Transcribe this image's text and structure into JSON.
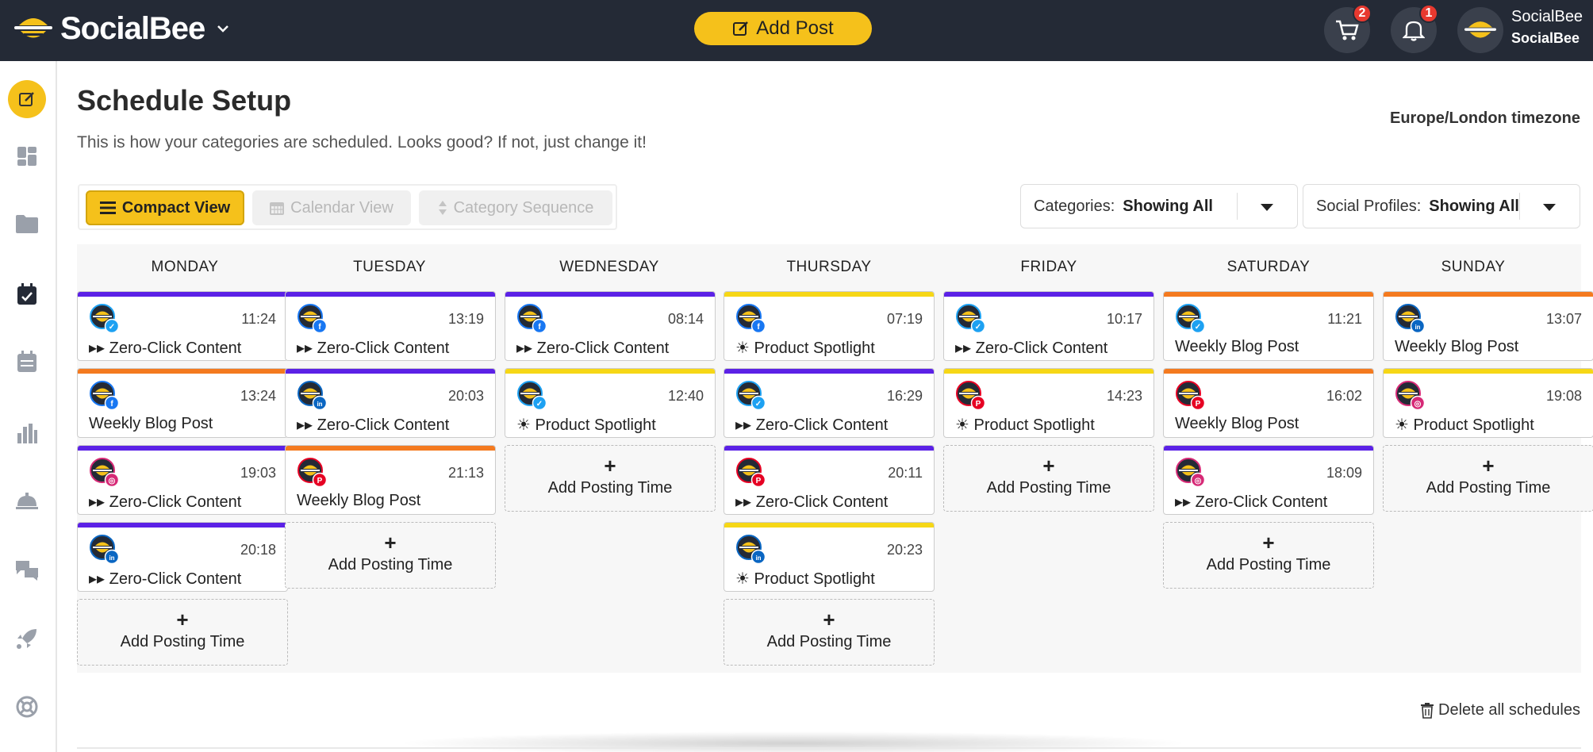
{
  "topbar": {
    "brand": "SocialBee",
    "add_post_label": "Add Post",
    "cart_badge": "2",
    "notifications_badge": "1",
    "user_name": "SocialBee",
    "user_org": "SocialBee"
  },
  "sidebar": {
    "items": [
      "edit-icon",
      "dashboard-icon",
      "folder-icon",
      "schedule-icon",
      "calendar-icon",
      "analytics-icon",
      "concierge-icon",
      "chat-icon",
      "rocket-icon",
      "help-icon"
    ]
  },
  "page": {
    "title": "Schedule Setup",
    "subtitle": "This is how your categories are scheduled. Looks good? If not, just change it!",
    "timezone": "Europe/London timezone"
  },
  "views": {
    "compact": "Compact View",
    "calendar": "Calendar View",
    "sequence": "Category Sequence"
  },
  "filters": {
    "categories_label": "Categories:",
    "categories_value": "Showing All",
    "profiles_label": "Social Profiles:",
    "profiles_value": "Showing All"
  },
  "colors": {
    "zero_click": "#5b21e6",
    "weekly_blog": "#f47a1f",
    "product_spotlight": "#f6d716",
    "accent": "#f5c11b"
  },
  "add_posting_time": "Add Posting Time",
  "add_plus": "+",
  "delete_all": "Delete all schedules",
  "days": [
    {
      "name": "MONDAY",
      "slots": [
        {
          "time": "11:24",
          "category": "▸▸ Zero-Click Content",
          "network": "twitter",
          "color": "#5b21e6"
        },
        {
          "time": "13:24",
          "category": "Weekly Blog Post",
          "network": "facebook",
          "color": "#f47a1f"
        },
        {
          "time": "19:03",
          "category": "▸▸ Zero-Click Content",
          "network": "instagram",
          "color": "#5b21e6"
        },
        {
          "time": "20:18",
          "category": "▸▸ Zero-Click Content",
          "network": "linkedin",
          "color": "#5b21e6"
        }
      ]
    },
    {
      "name": "TUESDAY",
      "slots": [
        {
          "time": "13:19",
          "category": "▸▸ Zero-Click Content",
          "network": "facebook",
          "color": "#5b21e6"
        },
        {
          "time": "20:03",
          "category": "▸▸ Zero-Click Content",
          "network": "linkedin",
          "color": "#5b21e6"
        },
        {
          "time": "21:13",
          "category": "Weekly Blog Post",
          "network": "pinterest",
          "color": "#f47a1f"
        }
      ]
    },
    {
      "name": "WEDNESDAY",
      "slots": [
        {
          "time": "08:14",
          "category": "▸▸ Zero-Click Content",
          "network": "facebook",
          "color": "#5b21e6"
        },
        {
          "time": "12:40",
          "category": "☀ Product Spotlight",
          "network": "twitter",
          "color": "#f6d716"
        }
      ]
    },
    {
      "name": "THURSDAY",
      "slots": [
        {
          "time": "07:19",
          "category": "☀ Product Spotlight",
          "network": "facebook",
          "color": "#f6d716"
        },
        {
          "time": "16:29",
          "category": "▸▸ Zero-Click Content",
          "network": "twitter",
          "color": "#5b21e6"
        },
        {
          "time": "20:11",
          "category": "▸▸ Zero-Click Content",
          "network": "pinterest",
          "color": "#5b21e6"
        },
        {
          "time": "20:23",
          "category": "☀ Product Spotlight",
          "network": "linkedin",
          "color": "#f6d716"
        }
      ]
    },
    {
      "name": "FRIDAY",
      "slots": [
        {
          "time": "10:17",
          "category": "▸▸ Zero-Click Content",
          "network": "twitter",
          "color": "#5b21e6"
        },
        {
          "time": "14:23",
          "category": "☀ Product Spotlight",
          "network": "pinterest",
          "color": "#f6d716"
        }
      ]
    },
    {
      "name": "SATURDAY",
      "slots": [
        {
          "time": "11:21",
          "category": "Weekly Blog Post",
          "network": "twitter",
          "color": "#f47a1f"
        },
        {
          "time": "16:02",
          "category": "Weekly Blog Post",
          "network": "pinterest",
          "color": "#f47a1f"
        },
        {
          "time": "18:09",
          "category": "▸▸ Zero-Click Content",
          "network": "instagram",
          "color": "#5b21e6"
        }
      ]
    },
    {
      "name": "SUNDAY",
      "slots": [
        {
          "time": "13:07",
          "category": "Weekly Blog Post",
          "network": "linkedin",
          "color": "#f47a1f"
        },
        {
          "time": "19:08",
          "category": "☀ Product Spotlight",
          "network": "instagram",
          "color": "#f6d716"
        }
      ]
    }
  ]
}
